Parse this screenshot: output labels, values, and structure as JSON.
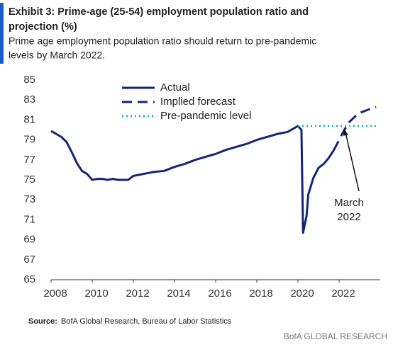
{
  "header": {
    "title_lines": [
      "Exhibit 3: Prime-age (25-54) employment population ratio and",
      "projection (%)"
    ],
    "subtitle_lines": [
      "Prime age employment population ratio should return to pre-pandemic",
      "levels by March 2022."
    ]
  },
  "chart_data": {
    "type": "line",
    "xlim": [
      2008,
      2024
    ],
    "xticks": [
      2008,
      2010,
      2012,
      2014,
      2016,
      2018,
      2020,
      2022
    ],
    "ylim": [
      65,
      85
    ],
    "yticks": [
      65,
      67,
      69,
      71,
      73,
      75,
      77,
      79,
      81,
      83,
      85
    ],
    "grid": false,
    "legend": "top",
    "series": [
      {
        "name": "Actual",
        "color": "#13257a",
        "style": "solid",
        "x": [
          2008.0,
          2008.25,
          2008.5,
          2008.75,
          2009.0,
          2009.25,
          2009.5,
          2009.75,
          2010.0,
          2010.25,
          2010.5,
          2010.75,
          2011.0,
          2011.25,
          2011.5,
          2011.75,
          2012.0,
          2012.5,
          2013.0,
          2013.5,
          2014.0,
          2014.5,
          2015.0,
          2015.5,
          2016.0,
          2016.5,
          2017.0,
          2017.5,
          2018.0,
          2018.5,
          2019.0,
          2019.5,
          2020.0,
          2020.17,
          2020.25,
          2020.42,
          2020.5,
          2020.75,
          2021.0,
          2021.25,
          2021.5,
          2021.75
        ],
        "values": [
          79.9,
          79.6,
          79.3,
          78.8,
          77.8,
          76.7,
          75.9,
          75.6,
          75.0,
          75.1,
          75.1,
          75.0,
          75.1,
          75.0,
          75.0,
          75.0,
          75.4,
          75.6,
          75.8,
          75.9,
          76.3,
          76.6,
          77.0,
          77.3,
          77.6,
          78.0,
          78.3,
          78.6,
          79.0,
          79.3,
          79.6,
          79.8,
          80.4,
          80.0,
          69.7,
          71.4,
          73.5,
          75.2,
          76.2,
          76.6,
          77.2,
          78.0
        ]
      },
      {
        "name": "Implied forecast",
        "color": "#13257a",
        "style": "dashed",
        "x": [
          2021.75,
          2022.0,
          2022.25,
          2022.5,
          2022.75,
          2023.0,
          2023.5,
          2023.8
        ],
        "values": [
          78.0,
          79.0,
          80.0,
          80.8,
          81.3,
          81.7,
          82.1,
          82.3
        ]
      },
      {
        "name": "Pre-pandemic level",
        "color": "#17a7c6",
        "style": "dotted",
        "x": [
          2020.0,
          2023.8
        ],
        "values": [
          80.4,
          80.4
        ]
      }
    ],
    "annotation": {
      "lines": [
        "March",
        "2022"
      ],
      "x": 2022.25,
      "y": 80.4
    }
  },
  "footer": {
    "source_label": "Source:",
    "source_text": "BofA Global Research, Bureau of Labor Statistics",
    "brand": "BofA GLOBAL RESEARCH"
  }
}
